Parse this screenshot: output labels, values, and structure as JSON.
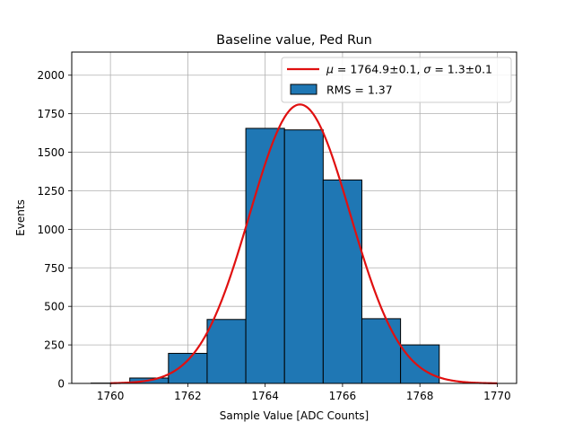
{
  "chart_data": {
    "type": "bar",
    "title": "Baseline value, Ped Run",
    "xlabel": "Sample Value [ADC Counts]",
    "ylabel": "Events",
    "xlim": [
      1759,
      1770.5
    ],
    "ylim": [
      0,
      2150
    ],
    "xticks": [
      1760,
      1762,
      1764,
      1766,
      1768,
      1770
    ],
    "yticks": [
      0,
      250,
      500,
      750,
      1000,
      1250,
      1500,
      1750,
      2000
    ],
    "grid": true,
    "legend_position": "top-right",
    "histogram": {
      "name": "RMS = 1.37",
      "color": "#1f77b4",
      "edgecolor": "#000000",
      "bins": [
        {
          "x0": 1759.5,
          "x1": 1760.5,
          "value": 2
        },
        {
          "x0": 1760.5,
          "x1": 1761.5,
          "value": 35
        },
        {
          "x0": 1761.5,
          "x1": 1762.5,
          "value": 195
        },
        {
          "x0": 1762.5,
          "x1": 1763.5,
          "value": 415
        },
        {
          "x0": 1763.5,
          "x1": 1764.5,
          "value": 1655
        },
        {
          "x0": 1764.5,
          "x1": 1765.5,
          "value": 1645
        },
        {
          "x0": 1765.5,
          "x1": 1766.5,
          "value": 1320
        },
        {
          "x0": 1766.5,
          "x1": 1767.5,
          "value": 420
        },
        {
          "x0": 1767.5,
          "x1": 1768.5,
          "value": 250
        }
      ]
    },
    "fit": {
      "name": "μ = 1764.9±0.1, σ = 1.3±0.1",
      "legend_mu": "μ",
      "legend_mu_text": " = 1764.9±0.1, ",
      "legend_sigma": "σ",
      "legend_sigma_text": " = 1.3±0.1",
      "color": "#e01010",
      "amplitude": 1810,
      "mu": 1764.9,
      "sigma": 1.3,
      "x_range": [
        1760,
        1770
      ]
    }
  }
}
